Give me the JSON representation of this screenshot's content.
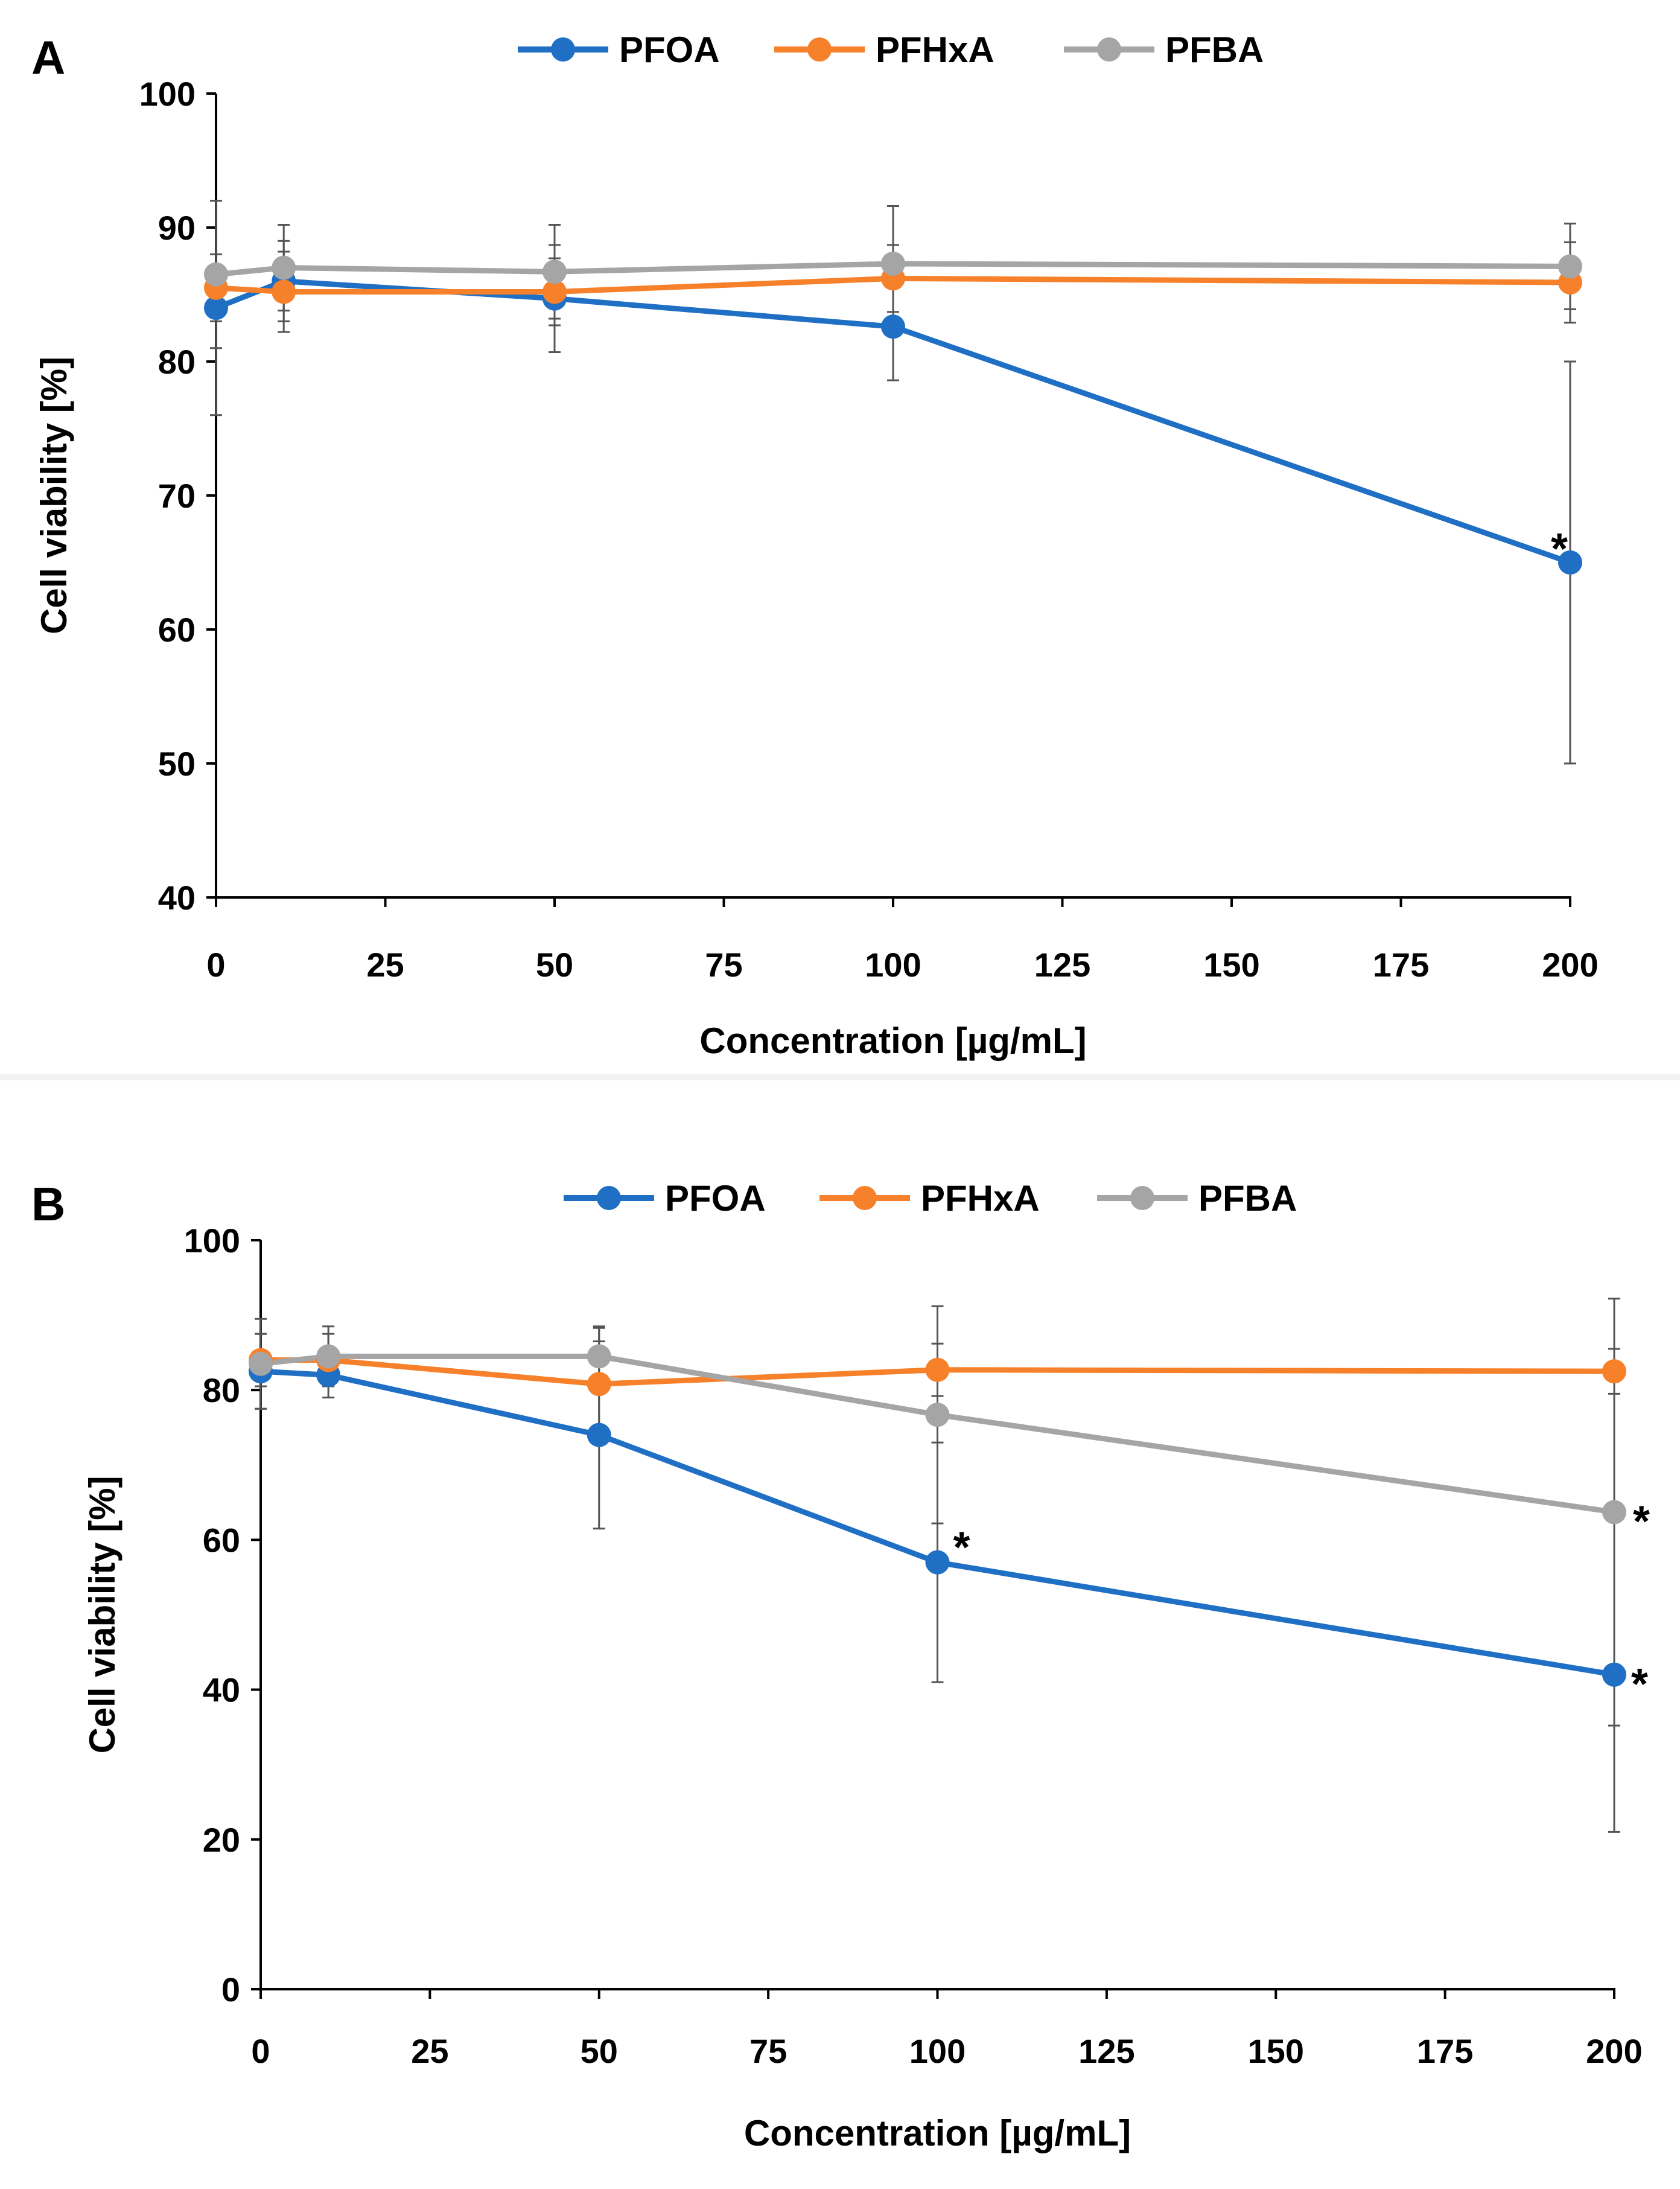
{
  "chart_data": [
    {
      "panel": "A",
      "type": "line",
      "title": "",
      "xlabel": "Concentration [µg/mL]",
      "ylabel": "Cell viability [%]",
      "xlim": [
        0,
        200
      ],
      "ylim": [
        40,
        100
      ],
      "xticks": [
        0,
        25,
        50,
        75,
        100,
        125,
        150,
        175,
        200
      ],
      "yticks": [
        40,
        50,
        60,
        70,
        80,
        90,
        100
      ],
      "grid": false,
      "legend": "top-center",
      "x": [
        0,
        10,
        50,
        100,
        200
      ],
      "series": [
        {
          "name": "PFOA",
          "color": "#1f6fc5",
          "values": [
            84.0,
            86.0,
            84.7,
            82.6,
            65.0
          ],
          "errors": [
            8.0,
            3.0,
            4.0,
            4.0,
            15.0
          ]
        },
        {
          "name": "PFHxA",
          "color": "#f7812a",
          "values": [
            85.5,
            85.2,
            85.2,
            86.2,
            85.9
          ],
          "errors": [
            2.5,
            3.0,
            2.5,
            2.5,
            3.0
          ]
        },
        {
          "name": "PFBA",
          "color": "#a5a5a5",
          "values": [
            86.5,
            87.0,
            86.7,
            87.3,
            87.1
          ],
          "errors": [
            5.5,
            3.2,
            3.5,
            4.3,
            3.2
          ]
        }
      ],
      "annotations": [
        {
          "text": "*",
          "x": 200,
          "y": 65.0
        }
      ]
    },
    {
      "panel": "B",
      "type": "line",
      "title": "",
      "xlabel": "Concentration [µg/mL]",
      "ylabel": "Cell viability [%]",
      "xlim": [
        0,
        200
      ],
      "ylim": [
        0,
        100
      ],
      "xticks": [
        0,
        25,
        50,
        75,
        100,
        125,
        150,
        175,
        200
      ],
      "yticks": [
        0,
        20,
        40,
        60,
        80,
        100
      ],
      "grid": false,
      "legend": "top-center",
      "x": [
        0,
        10,
        50,
        100,
        200
      ],
      "series": [
        {
          "name": "PFOA",
          "color": "#1f6fc5",
          "values": [
            82.5,
            82.0,
            74.0,
            57.0,
            42.0
          ],
          "errors": [
            5.0,
            3.0,
            12.5,
            16.0,
            21.0
          ]
        },
        {
          "name": "PFHxA",
          "color": "#f7812a",
          "values": [
            84.0,
            84.0,
            80.8,
            82.7,
            82.5
          ],
          "errors": [
            3.5,
            3.5,
            7.5,
            3.5,
            3.0
          ]
        },
        {
          "name": "PFBA",
          "color": "#a5a5a5",
          "values": [
            83.5,
            84.5,
            84.5,
            76.7,
            63.7
          ],
          "errors": [
            6.0,
            4.0,
            4.0,
            14.5,
            28.5
          ]
        }
      ],
      "annotations": [
        {
          "text": "*",
          "x": 100,
          "y": 57.0
        },
        {
          "text": "*",
          "x": 200,
          "y": 63.7
        },
        {
          "text": "*",
          "x": 200,
          "y": 42.0
        }
      ]
    }
  ]
}
